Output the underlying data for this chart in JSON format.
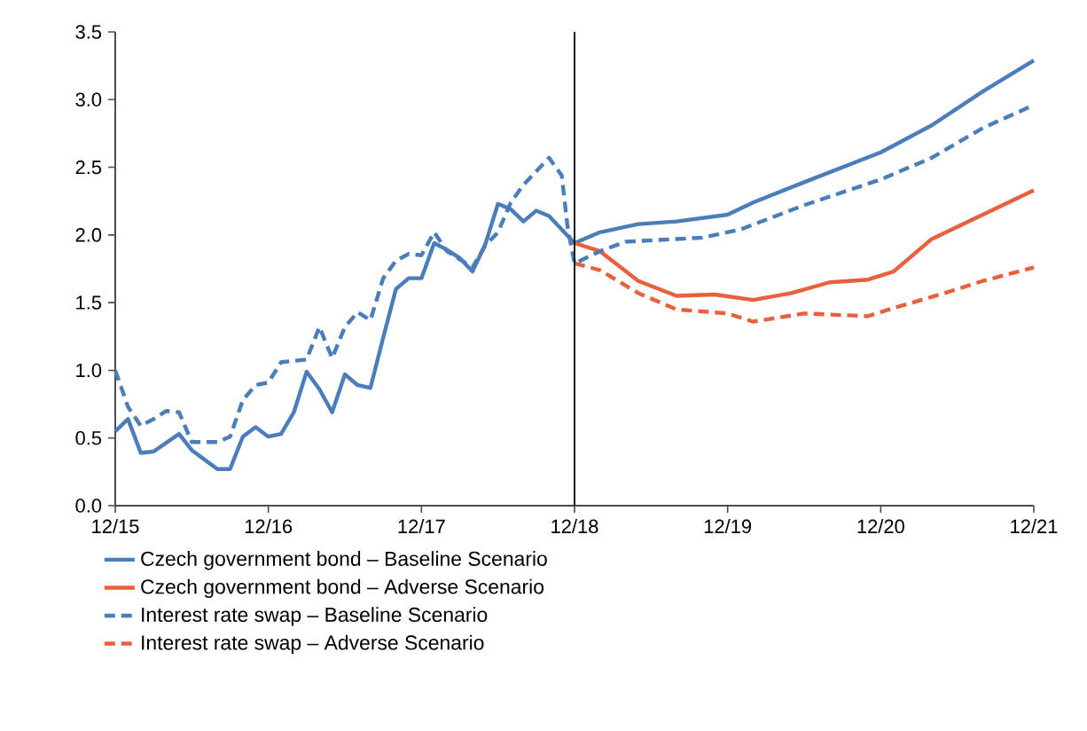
{
  "chart_data": {
    "type": "line",
    "xlim": [
      "2015-12",
      "2021-12"
    ],
    "ylim": [
      0,
      3.5
    ],
    "xticks": [
      {
        "value": "2015-12",
        "label": "12/15"
      },
      {
        "value": "2016-12",
        "label": "12/16"
      },
      {
        "value": "2017-12",
        "label": "12/17"
      },
      {
        "value": "2018-12",
        "label": "12/18"
      },
      {
        "value": "2019-12",
        "label": "12/19"
      },
      {
        "value": "2020-12",
        "label": "12/20"
      },
      {
        "value": "2021-12",
        "label": "12/21"
      }
    ],
    "yticks": [
      {
        "value": 0,
        "label": "0.0"
      },
      {
        "value": 0.5,
        "label": "0.5"
      },
      {
        "value": 1,
        "label": "1.0"
      },
      {
        "value": 1.5,
        "label": "1.5"
      },
      {
        "value": 2,
        "label": "2.0"
      },
      {
        "value": 2.5,
        "label": "2.5"
      },
      {
        "value": 3,
        "label": "3.0"
      },
      {
        "value": 3.5,
        "label": "3.5"
      }
    ],
    "grid": false,
    "legend": "bottom",
    "marker": "none",
    "ref_lines": [
      {
        "axis": "x",
        "value": "2018-12",
        "color": "#000000",
        "line_style": "solid"
      }
    ],
    "series": [
      {
        "name": "Czech government bond – Baseline Scenario",
        "color": "#4a7ebb",
        "line_style": "solid",
        "x": [
          "2015-12",
          "2016-01",
          "2016-02",
          "2016-03",
          "2016-05",
          "2016-06",
          "2016-08",
          "2016-09",
          "2016-10",
          "2016-11",
          "2016-12",
          "2017-01",
          "2017-02",
          "2017-03",
          "2017-04",
          "2017-05",
          "2017-06",
          "2017-07",
          "2017-08",
          "2017-09",
          "2017-10",
          "2017-11",
          "2017-12",
          "2018-01",
          "2018-02",
          "2018-03",
          "2018-04",
          "2018-05",
          "2018-06",
          "2018-07",
          "2018-08",
          "2018-09",
          "2018-10",
          "2018-11",
          "2018-12",
          "2019-02",
          "2019-05",
          "2019-08",
          "2019-12",
          "2020-02",
          "2020-06",
          "2020-12",
          "2021-04",
          "2021-08",
          "2021-12"
        ],
        "values": [
          0.55,
          0.64,
          0.39,
          0.4,
          0.53,
          0.41,
          0.27,
          0.27,
          0.51,
          0.58,
          0.51,
          0.53,
          0.69,
          0.99,
          0.86,
          0.69,
          0.97,
          0.89,
          0.87,
          1.24,
          1.6,
          1.68,
          1.68,
          1.94,
          1.89,
          1.83,
          1.73,
          1.93,
          2.23,
          2.19,
          2.1,
          2.18,
          2.14,
          2.04,
          1.94,
          2.02,
          2.08,
          2.1,
          2.15,
          2.24,
          2.39,
          2.61,
          2.81,
          3.06,
          3.29
        ]
      },
      {
        "name": "Czech government bond – Adverse Scenario",
        "color": "#e9603c",
        "line_style": "solid",
        "x": [
          "2018-12",
          "2019-02",
          "2019-05",
          "2019-08",
          "2019-11",
          "2020-02",
          "2020-05",
          "2020-08",
          "2020-11",
          "2021-01",
          "2021-04",
          "2021-08",
          "2021-12"
        ],
        "values": [
          1.94,
          1.88,
          1.66,
          1.55,
          1.56,
          1.52,
          1.57,
          1.65,
          1.67,
          1.73,
          1.97,
          2.15,
          2.33
        ]
      },
      {
        "name": "Interest rate swap – Baseline Scenario",
        "color": "#4a7ebb",
        "line_style": "dashed",
        "x": [
          "2015-12",
          "2016-01",
          "2016-02",
          "2016-03",
          "2016-04",
          "2016-05",
          "2016-06",
          "2016-08",
          "2016-09",
          "2016-10",
          "2016-11",
          "2016-12",
          "2017-01",
          "2017-03",
          "2017-04",
          "2017-05",
          "2017-06",
          "2017-07",
          "2017-08",
          "2017-09",
          "2017-10",
          "2017-11",
          "2017-12",
          "2018-01",
          "2018-02",
          "2018-03",
          "2018-04",
          "2018-05",
          "2018-06",
          "2018-07",
          "2018-08",
          "2018-10",
          "2018-11",
          "2018-11-15",
          "2018-12",
          "2019-02",
          "2019-04",
          "2019-10",
          "2020-01",
          "2020-06",
          "2020-12",
          "2021-04",
          "2021-08",
          "2021-12"
        ],
        "values": [
          1.0,
          0.73,
          0.59,
          0.64,
          0.7,
          0.69,
          0.47,
          0.47,
          0.51,
          0.78,
          0.89,
          0.91,
          1.06,
          1.08,
          1.32,
          1.09,
          1.32,
          1.43,
          1.37,
          1.68,
          1.81,
          1.86,
          1.85,
          2.02,
          1.88,
          1.82,
          1.76,
          1.92,
          2.02,
          2.24,
          2.37,
          2.57,
          2.44,
          2.06,
          1.79,
          1.88,
          1.95,
          1.98,
          2.04,
          2.22,
          2.41,
          2.57,
          2.79,
          2.96
        ]
      },
      {
        "name": "Interest rate swap – Adverse Scenario",
        "color": "#e9603c",
        "line_style": "dashed",
        "x": [
          "2018-12",
          "2019-02",
          "2019-05",
          "2019-08",
          "2019-12",
          "2020-02",
          "2020-06",
          "2020-11",
          "2021-01",
          "2021-05",
          "2021-08",
          "2021-12"
        ],
        "values": [
          1.79,
          1.74,
          1.57,
          1.45,
          1.42,
          1.36,
          1.42,
          1.4,
          1.46,
          1.57,
          1.66,
          1.76
        ]
      }
    ]
  }
}
